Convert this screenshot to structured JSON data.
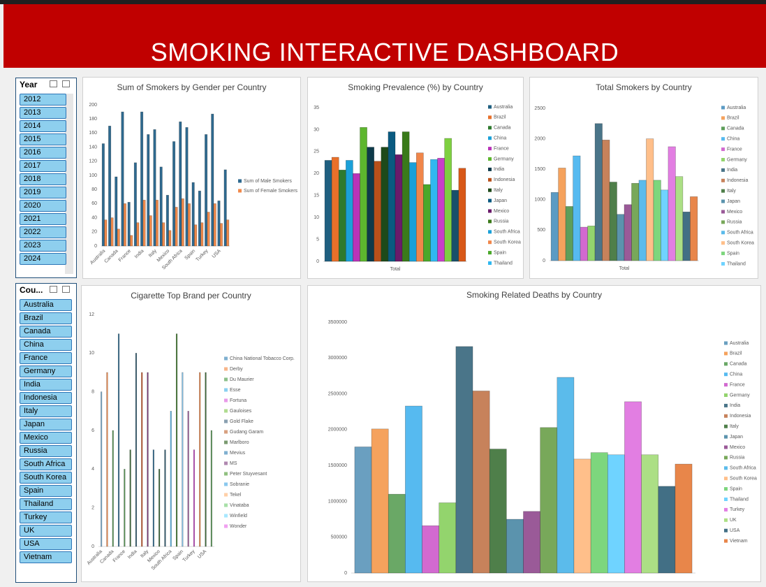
{
  "header": {
    "title": "SMOKING INTERACTIVE  DASHBOARD"
  },
  "slicers": [
    {
      "title": "Year",
      "items": [
        "2012",
        "2013",
        "2014",
        "2015",
        "2016",
        "2017",
        "2018",
        "2019",
        "2020",
        "2021",
        "2022",
        "2023",
        "2024"
      ]
    },
    {
      "title": "Cou...",
      "items": [
        "Australia",
        "Brazil",
        "Canada",
        "China",
        "France",
        "Germany",
        "India",
        "Indonesia",
        "Italy",
        "Japan",
        "Mexico",
        "Russia",
        "South Africa",
        "South Korea",
        "Spain",
        "Thailand",
        "Turkey",
        "UK",
        "USA",
        "Vietnam"
      ]
    }
  ],
  "chart_data": [
    {
      "type": "bar",
      "title": "Sum of Smokers by Gender per Country",
      "categories": [
        "Australia",
        null,
        "Canada",
        null,
        "France",
        null,
        "India",
        null,
        "Italy",
        null,
        "Mexico",
        null,
        "South Africa",
        null,
        "Spain",
        null,
        "Turkey",
        null,
        "USA",
        null
      ],
      "series": [
        {
          "name": "Sum of Male Smokers",
          "color": "#2e6a90",
          "values": [
            145,
            170,
            98,
            190,
            62,
            118,
            190,
            158,
            165,
            112,
            72,
            148,
            176,
            168,
            90,
            78,
            158,
            187,
            64,
            108
          ]
        },
        {
          "name": "Sum of Female Smokers",
          "color": "#f08a4b",
          "values": [
            37,
            40,
            24,
            60,
            15,
            33,
            65,
            43,
            65,
            33,
            22,
            55,
            67,
            60,
            30,
            33,
            48,
            60,
            32,
            37
          ]
        }
      ],
      "ylim": [
        0,
        200
      ],
      "yticks": [
        0,
        20,
        40,
        60,
        80,
        100,
        120,
        140,
        160,
        180,
        200
      ],
      "grid": false,
      "legend": "right"
    },
    {
      "type": "bar",
      "title": "Smoking Prevalence (%) by Country",
      "categories": [
        "Total"
      ],
      "series": [
        {
          "name": "Australia",
          "color": "#1f5f80",
          "values": [
            23
          ]
        },
        {
          "name": "Brazil",
          "color": "#e8702a",
          "values": [
            23.7
          ]
        },
        {
          "name": "Canada",
          "color": "#2e7a2e",
          "values": [
            20.8
          ]
        },
        {
          "name": "China",
          "color": "#1aa0d8",
          "values": [
            23
          ]
        },
        {
          "name": "France",
          "color": "#b832b8",
          "values": [
            20
          ]
        },
        {
          "name": "Germany",
          "color": "#5db62e",
          "values": [
            30.5
          ]
        },
        {
          "name": "India",
          "color": "#0e3a4a",
          "values": [
            26
          ]
        },
        {
          "name": "Indonesia",
          "color": "#b8501a",
          "values": [
            22.8
          ]
        },
        {
          "name": "Italy",
          "color": "#1e4a1a",
          "values": [
            26
          ]
        },
        {
          "name": "Japan",
          "color": "#0a5a80",
          "values": [
            29.5
          ]
        },
        {
          "name": "Mexico",
          "color": "#6a1a6a",
          "values": [
            24.3
          ]
        },
        {
          "name": "Russia",
          "color": "#3a7a1a",
          "values": [
            29.5
          ]
        },
        {
          "name": "South Africa",
          "color": "#1aa0d8",
          "values": [
            22.5
          ]
        },
        {
          "name": "South Korea",
          "color": "#f0864a",
          "values": [
            24.7
          ]
        },
        {
          "name": "Spain",
          "color": "#4aa82a",
          "values": [
            17.5
          ]
        },
        {
          "name": "Thailand",
          "color": "#30b8f0",
          "values": [
            23.2
          ]
        },
        {
          "name": null,
          "color": "#c840c8",
          "values": [
            23.5
          ]
        },
        {
          "name": null,
          "color": "#7ed040",
          "values": [
            28
          ]
        },
        {
          "name": null,
          "color": "#18506a",
          "values": [
            16.2
          ]
        },
        {
          "name": null,
          "color": "#d85818",
          "values": [
            21.2
          ]
        }
      ],
      "ylim": [
        0,
        35
      ],
      "yticks": [
        0,
        5,
        10,
        15,
        20,
        25,
        30,
        35
      ],
      "grid": false,
      "legend": "right"
    },
    {
      "type": "bar",
      "title": "Total Smokers by Country",
      "categories": [
        "Total"
      ],
      "series": [
        {
          "name": "Australia",
          "color": "#5b9bc4",
          "values": [
            1120
          ]
        },
        {
          "name": "Brazil",
          "color": "#f5a25d",
          "values": [
            1520
          ]
        },
        {
          "name": "Canada",
          "color": "#5e9e5a",
          "values": [
            890
          ]
        },
        {
          "name": "China",
          "color": "#56baf0",
          "values": [
            1720
          ]
        },
        {
          "name": "France",
          "color": "#d26ad0",
          "values": [
            550
          ]
        },
        {
          "name": "Germany",
          "color": "#93d46d",
          "values": [
            570
          ]
        },
        {
          "name": "India",
          "color": "#4a7589",
          "values": [
            2250
          ]
        },
        {
          "name": "Indonesia",
          "color": "#c7825b",
          "values": [
            1980
          ]
        },
        {
          "name": "Italy",
          "color": "#4f7f4a",
          "values": [
            1290
          ]
        },
        {
          "name": "Japan",
          "color": "#5b93ad",
          "values": [
            760
          ]
        },
        {
          "name": "Mexico",
          "color": "#9a5a98",
          "values": [
            920
          ]
        },
        {
          "name": "Russia",
          "color": "#78a85a",
          "values": [
            1270
          ]
        },
        {
          "name": "South Africa",
          "color": "#5bbbeb",
          "values": [
            1320
          ]
        },
        {
          "name": "South Korea",
          "color": "#ffbf8a",
          "values": [
            2000
          ]
        },
        {
          "name": "Spain",
          "color": "#7dd67d",
          "values": [
            1320
          ]
        },
        {
          "name": "Thailand",
          "color": "#6fd3ff",
          "values": [
            1160
          ]
        },
        {
          "name": null,
          "color": "#e27ee2",
          "values": [
            1870
          ]
        },
        {
          "name": null,
          "color": "#acdf85",
          "values": [
            1380
          ]
        },
        {
          "name": null,
          "color": "#426f85",
          "values": [
            800
          ]
        },
        {
          "name": null,
          "color": "#e8864a",
          "values": [
            1050
          ]
        }
      ],
      "ylim": [
        0,
        2500
      ],
      "yticks": [
        0,
        500,
        1000,
        1500,
        2000,
        2500
      ],
      "grid": false,
      "legend": "right"
    },
    {
      "type": "bar",
      "title": "Cigarette Top Brand per Country",
      "categories": [
        "Australia",
        null,
        "Canada",
        null,
        "France",
        null,
        "India",
        null,
        "Italy",
        null,
        "Mexico",
        null,
        "South Africa",
        null,
        "Spain",
        null,
        "Turkey",
        null,
        "USA",
        null
      ],
      "values": [
        8,
        9,
        6,
        11,
        4,
        5,
        10,
        9,
        9,
        5,
        4,
        5,
        7,
        11,
        9,
        7,
        5,
        9,
        9,
        6
      ],
      "colors": [
        "#7fb0d0",
        "#f08a4b",
        "#5a9a58",
        "#2e6a90",
        "#5a9a58",
        "#3d6b3a",
        "#2e5a70",
        "#c7582b",
        "#7a3a78",
        "#2e6a90",
        "#3d6b3a",
        "#2e5a70",
        "#5bbbeb",
        "#3d7a2a",
        "#8ac8ee",
        "#9a5a98",
        "#c84ac8",
        "#e8864a",
        "#3d6b3a",
        "#5a9a58"
      ],
      "brands": [
        {
          "name": "China National Tobacco Corp.",
          "color": "#7fb0d0"
        },
        {
          "name": "Derby",
          "color": "#f7b58a"
        },
        {
          "name": "Du Maurier",
          "color": "#8cc08a"
        },
        {
          "name": "Esse",
          "color": "#8ad0f0"
        },
        {
          "name": "Fortuna",
          "color": "#e89ae8"
        },
        {
          "name": "Gauloises",
          "color": "#b0dc90"
        },
        {
          "name": "Gold Flake",
          "color": "#8aa0b0"
        },
        {
          "name": "Gudang Garam",
          "color": "#d8a080"
        },
        {
          "name": "Marlboro",
          "color": "#7a9a70"
        },
        {
          "name": "Mevius",
          "color": "#80b0d0"
        },
        {
          "name": "MS",
          "color": "#b088b0"
        },
        {
          "name": "Peter Stuyvesant",
          "color": "#90c080"
        },
        {
          "name": "Sobranie",
          "color": "#8ac8ee"
        },
        {
          "name": "Tekel",
          "color": "#ffd0a8"
        },
        {
          "name": "Vinataba",
          "color": "#a8e0a8"
        },
        {
          "name": "Winfield",
          "color": "#a8e8ff"
        },
        {
          "name": "Wonder",
          "color": "#f0a0f0"
        }
      ],
      "ylim": [
        0,
        12
      ],
      "yticks": [
        0,
        2,
        4,
        6,
        8,
        10,
        12
      ],
      "grid": false,
      "legend": "right"
    },
    {
      "type": "bar",
      "title": "Smoking Related Deaths by Country",
      "series": [
        {
          "name": "Australia",
          "color": "#6a9fc0",
          "values": [
            1760000
          ]
        },
        {
          "name": "Brazil",
          "color": "#f5a25d",
          "values": [
            2010000
          ]
        },
        {
          "name": "Canada",
          "color": "#6aa866",
          "values": [
            1100000
          ]
        },
        {
          "name": "China",
          "color": "#56baf0",
          "values": [
            2330000
          ]
        },
        {
          "name": "France",
          "color": "#d26ad0",
          "values": [
            660000
          ]
        },
        {
          "name": "Germany",
          "color": "#93d46d",
          "values": [
            980000
          ]
        },
        {
          "name": "India",
          "color": "#4a7589",
          "values": [
            3160000
          ]
        },
        {
          "name": "Indonesia",
          "color": "#c7825b",
          "values": [
            2540000
          ]
        },
        {
          "name": "Italy",
          "color": "#4f7f4a",
          "values": [
            1730000
          ]
        },
        {
          "name": "Japan",
          "color": "#5b93ad",
          "values": [
            750000
          ]
        },
        {
          "name": "Mexico",
          "color": "#9a5a98",
          "values": [
            860000
          ]
        },
        {
          "name": "Russia",
          "color": "#78a85a",
          "values": [
            2030000
          ]
        },
        {
          "name": "South Africa",
          "color": "#5bbbeb",
          "values": [
            2730000
          ]
        },
        {
          "name": "South Korea",
          "color": "#ffbf8a",
          "values": [
            1590000
          ]
        },
        {
          "name": "Spain",
          "color": "#7dd67d",
          "values": [
            1680000
          ]
        },
        {
          "name": "Thailand",
          "color": "#6fd3ff",
          "values": [
            1650000
          ]
        },
        {
          "name": "Turkey",
          "color": "#e27ee2",
          "values": [
            2390000
          ]
        },
        {
          "name": "UK",
          "color": "#acdf85",
          "values": [
            1650000
          ]
        },
        {
          "name": "USA",
          "color": "#426f85",
          "values": [
            1210000
          ]
        },
        {
          "name": "Vietnam",
          "color": "#e8864a",
          "values": [
            1520000
          ]
        }
      ],
      "ylim": [
        0,
        3500000
      ],
      "yticks": [
        0,
        500000,
        1000000,
        1500000,
        2000000,
        2500000,
        3000000,
        3500000
      ],
      "grid": false,
      "legend": "right"
    }
  ]
}
